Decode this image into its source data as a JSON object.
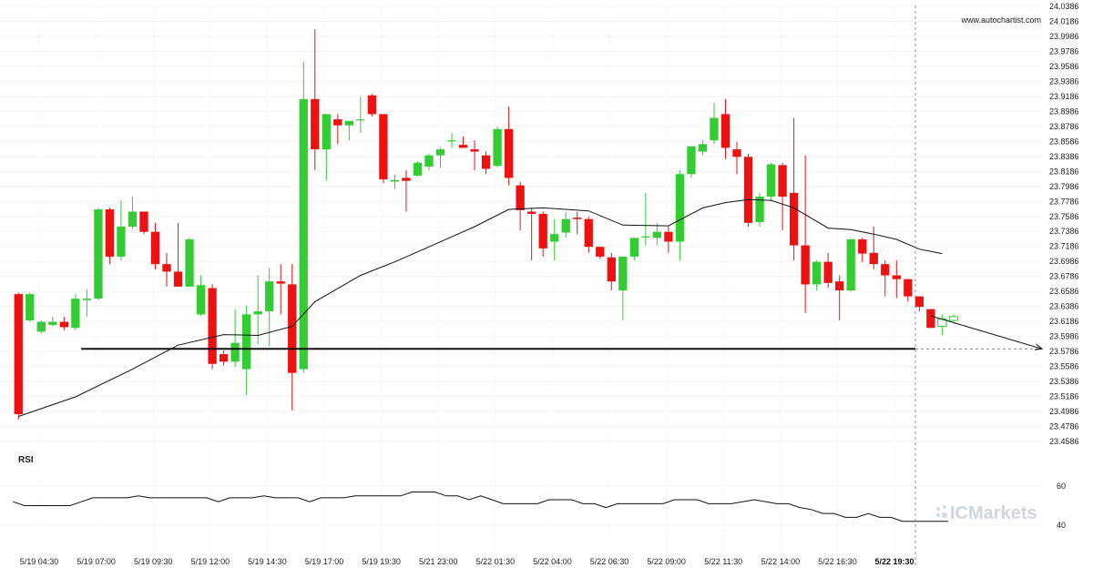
{
  "watermark": "www.autochartist.com",
  "brand": "ICMarkets",
  "colors": {
    "up": "#33cc33",
    "down": "#ee1111",
    "line": "#111111",
    "level": "#111111",
    "grid": "#ececec",
    "rsi": "#111111"
  },
  "chart_data": {
    "type": "candlestick",
    "y_ticks": [
      "24.0386",
      "24.0186",
      "23.9986",
      "23.9786",
      "23.9586",
      "23.9386",
      "23.9186",
      "23.8986",
      "23.8786",
      "23.8586",
      "23.8386",
      "23.8186",
      "23.7986",
      "23.7786",
      "23.7586",
      "23.7386",
      "23.7186",
      "23.6986",
      "23.6786",
      "23.6586",
      "23.6386",
      "23.6186",
      "23.5986",
      "23.5786",
      "23.5586",
      "23.5386",
      "23.5186",
      "23.4986",
      "23.4786",
      "23.4586"
    ],
    "x_labels": [
      "5/19 04:30",
      "5/19 07:00",
      "5/19 09:30",
      "5/19 12:00",
      "5/19 14:30",
      "5/19 17:00",
      "5/19 19:30",
      "5/21 23:00",
      "5/22 01:30",
      "5/22 04:00",
      "5/22 06:30",
      "5/22 09:00",
      "5/22 11:30",
      "5/22 14:00",
      "5/22 16:30",
      "5/22 19:30"
    ],
    "x_label_bars": [
      2,
      7,
      12,
      17,
      22,
      27,
      32,
      37,
      42,
      47,
      52,
      57,
      62,
      67,
      72,
      77
    ],
    "highlight_label": "5/22 19:30",
    "ylim": [
      23.4586,
      24.0386
    ],
    "candles": [
      [
        23.655,
        23.657,
        23.488,
        23.495
      ],
      [
        23.62,
        23.657,
        23.618,
        23.655
      ],
      [
        23.605,
        23.62,
        23.602,
        23.618
      ],
      [
        23.614,
        23.625,
        23.612,
        23.618
      ],
      [
        23.618,
        23.625,
        23.607,
        23.611
      ],
      [
        23.61,
        23.655,
        23.607,
        23.649
      ],
      [
        23.647,
        23.662,
        23.625,
        23.649
      ],
      [
        23.649,
        23.77,
        23.647,
        23.768
      ],
      [
        23.768,
        23.77,
        23.695,
        23.705
      ],
      [
        23.705,
        23.78,
        23.7,
        23.745
      ],
      [
        23.745,
        23.785,
        23.742,
        23.765
      ],
      [
        23.765,
        23.765,
        23.735,
        23.738
      ],
      [
        23.738,
        23.75,
        23.688,
        23.695
      ],
      [
        23.695,
        23.71,
        23.665,
        23.685
      ],
      [
        23.685,
        23.75,
        23.665,
        23.665
      ],
      [
        23.665,
        23.73,
        23.665,
        23.728
      ],
      [
        23.628,
        23.68,
        23.626,
        23.667
      ],
      [
        23.663,
        23.668,
        23.555,
        23.562
      ],
      [
        23.575,
        23.58,
        23.56,
        23.565
      ],
      [
        23.565,
        23.635,
        23.558,
        23.59
      ],
      [
        23.555,
        23.64,
        23.52,
        23.628
      ],
      [
        23.628,
        23.68,
        23.588,
        23.632
      ],
      [
        23.632,
        23.69,
        23.585,
        23.672
      ],
      [
        23.672,
        23.695,
        23.628,
        23.669
      ],
      [
        23.668,
        23.695,
        23.5,
        23.55
      ],
      [
        23.555,
        23.965,
        23.55,
        23.915
      ],
      [
        23.915,
        24.008,
        23.82,
        23.848
      ],
      [
        23.848,
        23.895,
        23.807,
        23.895
      ],
      [
        23.888,
        23.895,
        23.855,
        23.88
      ],
      [
        23.88,
        23.885,
        23.86,
        23.886
      ],
      [
        23.887,
        23.918,
        23.87,
        23.888
      ],
      [
        23.92,
        23.922,
        23.892,
        23.895
      ],
      [
        23.895,
        23.895,
        23.803,
        23.808
      ],
      [
        23.805,
        23.815,
        23.795,
        23.807
      ],
      [
        23.81,
        23.82,
        23.765,
        23.806
      ],
      [
        23.813,
        23.832,
        23.812,
        23.83
      ],
      [
        23.825,
        23.842,
        23.82,
        23.84
      ],
      [
        23.84,
        23.85,
        23.823,
        23.848
      ],
      [
        23.86,
        23.87,
        23.85,
        23.86
      ],
      [
        23.854,
        23.865,
        23.85,
        23.85
      ],
      [
        23.848,
        23.86,
        23.82,
        23.845
      ],
      [
        23.84,
        23.845,
        23.815,
        23.822
      ],
      [
        23.826,
        23.878,
        23.824,
        23.875
      ],
      [
        23.875,
        23.905,
        23.8,
        23.81
      ],
      [
        23.8,
        23.805,
        23.74,
        23.767
      ],
      [
        23.765,
        23.77,
        23.7,
        23.762
      ],
      [
        23.762,
        23.765,
        23.705,
        23.716
      ],
      [
        23.725,
        23.755,
        23.7,
        23.735
      ],
      [
        23.737,
        23.765,
        23.73,
        23.755
      ],
      [
        23.757,
        23.765,
        23.735,
        23.755
      ],
      [
        23.755,
        23.758,
        23.71,
        23.718
      ],
      [
        23.718,
        23.718,
        23.702,
        23.705
      ],
      [
        23.704,
        23.71,
        23.66,
        23.672
      ],
      [
        23.66,
        23.7,
        23.62,
        23.705
      ],
      [
        23.705,
        23.73,
        23.7,
        23.73
      ],
      [
        23.732,
        23.79,
        23.72,
        23.732
      ],
      [
        23.73,
        23.75,
        23.72,
        23.738
      ],
      [
        23.738,
        23.745,
        23.71,
        23.725
      ],
      [
        23.725,
        23.82,
        23.7,
        23.815
      ],
      [
        23.815,
        23.852,
        23.81,
        23.852
      ],
      [
        23.845,
        23.86,
        23.84,
        23.855
      ],
      [
        23.86,
        23.91,
        23.855,
        23.89
      ],
      [
        23.895,
        23.915,
        23.835,
        23.85
      ],
      [
        23.848,
        23.858,
        23.815,
        23.838
      ],
      [
        23.838,
        23.842,
        23.745,
        23.75
      ],
      [
        23.751,
        23.79,
        23.745,
        23.785
      ],
      [
        23.785,
        23.83,
        23.78,
        23.828
      ],
      [
        23.827,
        23.83,
        23.74,
        23.785
      ],
      [
        23.79,
        23.89,
        23.7,
        23.72
      ],
      [
        23.72,
        23.84,
        23.63,
        23.668
      ],
      [
        23.668,
        23.7,
        23.66,
        23.698
      ],
      [
        23.698,
        23.71,
        23.663,
        23.67
      ],
      [
        23.672,
        23.68,
        23.62,
        23.66
      ],
      [
        23.66,
        23.73,
        23.658,
        23.728
      ],
      [
        23.728,
        23.73,
        23.698,
        23.709
      ],
      [
        23.71,
        23.745,
        23.688,
        23.695
      ],
      [
        23.695,
        23.7,
        23.652,
        23.68
      ],
      [
        23.68,
        23.7,
        23.65,
        23.675
      ],
      [
        23.675,
        23.675,
        23.645,
        23.652
      ],
      [
        23.652,
        23.652,
        23.632,
        23.638
      ],
      [
        23.635,
        23.635,
        23.61,
        23.61
      ],
      [
        23.612,
        23.628,
        23.6,
        23.622
      ],
      [
        23.62,
        23.628,
        23.618,
        23.625
      ]
    ],
    "moving_average": [
      [
        0,
        23.492
      ],
      [
        5,
        23.518
      ],
      [
        10,
        23.555
      ],
      [
        14,
        23.587
      ],
      [
        18,
        23.601
      ],
      [
        21,
        23.6
      ],
      [
        24,
        23.612
      ],
      [
        26,
        23.645
      ],
      [
        30,
        23.68
      ],
      [
        33,
        23.698
      ],
      [
        36,
        23.718
      ],
      [
        40,
        23.745
      ],
      [
        43,
        23.768
      ],
      [
        46,
        23.77
      ],
      [
        50,
        23.766
      ],
      [
        53,
        23.747
      ],
      [
        57,
        23.746
      ],
      [
        60,
        23.77
      ],
      [
        62,
        23.777
      ],
      [
        64,
        23.781
      ],
      [
        66,
        23.78
      ],
      [
        68,
        23.77
      ],
      [
        71,
        23.743
      ],
      [
        73,
        23.741
      ],
      [
        75,
        23.735
      ],
      [
        77,
        23.728
      ],
      [
        79,
        23.715
      ],
      [
        81,
        23.709
      ]
    ],
    "support_level": {
      "value": 23.582,
      "from_bar": 6
    },
    "projection": {
      "from_bar": 80,
      "from_value": 23.626,
      "to_value": 23.582
    },
    "rsi": {
      "label": "RSI",
      "ticks": [
        "60",
        "40"
      ],
      "ylim": [
        36,
        66
      ],
      "points": [
        [
          0,
          52
        ],
        [
          1,
          50
        ],
        [
          5,
          50
        ],
        [
          6,
          52
        ],
        [
          7,
          54
        ],
        [
          10,
          54
        ],
        [
          11,
          55
        ],
        [
          12,
          54
        ],
        [
          17,
          54
        ],
        [
          18,
          52
        ],
        [
          19,
          54
        ],
        [
          21,
          54
        ],
        [
          22,
          55
        ],
        [
          23,
          54
        ],
        [
          25,
          54
        ],
        [
          26,
          52
        ],
        [
          27,
          54
        ],
        [
          29,
          54
        ],
        [
          30,
          55
        ],
        [
          34,
          55
        ],
        [
          35,
          57
        ],
        [
          37,
          57
        ],
        [
          38,
          55
        ],
        [
          39,
          55
        ],
        [
          40,
          53
        ],
        [
          41,
          55
        ],
        [
          42,
          53
        ],
        [
          43,
          51
        ],
        [
          46,
          51
        ],
        [
          47,
          53
        ],
        [
          49,
          53
        ],
        [
          50,
          51
        ],
        [
          51,
          51
        ],
        [
          52,
          49
        ],
        [
          53,
          51
        ],
        [
          57,
          51
        ],
        [
          58,
          53
        ],
        [
          60,
          53
        ],
        [
          61,
          51
        ],
        [
          63,
          51
        ],
        [
          65,
          53
        ],
        [
          67,
          51
        ],
        [
          68,
          51
        ],
        [
          69,
          49
        ],
        [
          70,
          48
        ],
        [
          71,
          46
        ],
        [
          72,
          46
        ],
        [
          73,
          44
        ],
        [
          74,
          44
        ],
        [
          75,
          46
        ],
        [
          76,
          44
        ],
        [
          77,
          44
        ],
        [
          78,
          42
        ],
        [
          82,
          42
        ]
      ]
    }
  }
}
